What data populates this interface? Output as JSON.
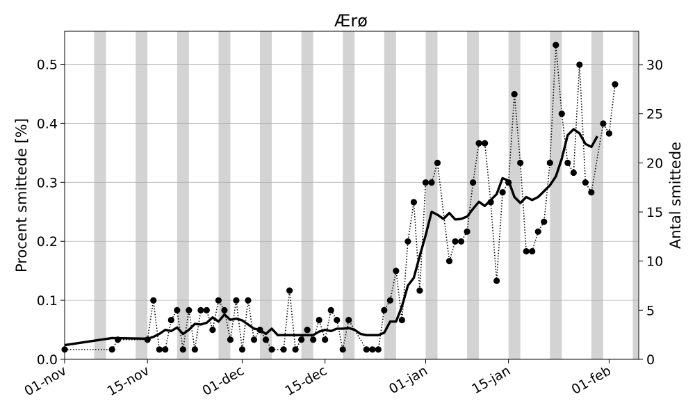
{
  "chart_data": {
    "type": "line",
    "title": "Ærø",
    "ylabel": "Procent smittede [%]",
    "ylabel_right": "Antal smittede",
    "x_unit": "day",
    "x_range": [
      "2020-11-01",
      "2021-02-06"
    ],
    "x_ticks": [
      {
        "date": "2020-11-01",
        "label": "01-nov"
      },
      {
        "date": "2020-11-15",
        "label": "15-nov"
      },
      {
        "date": "2020-12-01",
        "label": "01-dec"
      },
      {
        "date": "2020-12-15",
        "label": "15-dec"
      },
      {
        "date": "2021-01-01",
        "label": "01-jan"
      },
      {
        "date": "2021-01-15",
        "label": "15-jan"
      },
      {
        "date": "2021-02-01",
        "label": "01-feb"
      }
    ],
    "weekend_shading": [
      {
        "start": "2020-11-06",
        "end": "2020-11-08"
      },
      {
        "start": "2020-11-13",
        "end": "2020-11-15"
      },
      {
        "start": "2020-11-20",
        "end": "2020-11-22"
      },
      {
        "start": "2020-11-27",
        "end": "2020-11-29"
      },
      {
        "start": "2020-12-04",
        "end": "2020-12-06"
      },
      {
        "start": "2020-12-11",
        "end": "2020-12-13"
      },
      {
        "start": "2020-12-18",
        "end": "2020-12-20"
      },
      {
        "start": "2020-12-25",
        "end": "2020-12-27"
      },
      {
        "start": "2021-01-01",
        "end": "2021-01-03"
      },
      {
        "start": "2021-01-08",
        "end": "2021-01-10"
      },
      {
        "start": "2021-01-15",
        "end": "2021-01-17"
      },
      {
        "start": "2021-01-22",
        "end": "2021-01-24"
      },
      {
        "start": "2021-01-29",
        "end": "2021-01-31"
      },
      {
        "start": "2021-02-05",
        "end": "2021-02-07"
      }
    ],
    "ylim": [
      0,
      0.556
    ],
    "yticks": [
      0.0,
      0.1,
      0.2,
      0.3,
      0.4,
      0.5
    ],
    "ytick_labels": [
      "0.0",
      "0.1",
      "0.2",
      "0.3",
      "0.4",
      "0.5"
    ],
    "ylim_right": [
      0,
      33.4
    ],
    "yticks_right": [
      0,
      5,
      10,
      15,
      20,
      25,
      30
    ],
    "ytick_labels_right": [
      "0",
      "5",
      "10",
      "15",
      "20",
      "25",
      "30"
    ],
    "grid": "horizontal",
    "series": [
      {
        "style": "dotted black line with circle markers",
        "axis": "right",
        "points": [
          [
            "2020-11-01",
            1
          ],
          [
            "2020-11-09",
            1
          ],
          [
            "2020-11-10",
            2
          ],
          [
            "2020-11-15",
            2
          ],
          [
            "2020-11-16",
            6
          ],
          [
            "2020-11-17",
            1
          ],
          [
            "2020-11-18",
            1
          ],
          [
            "2020-11-19",
            4
          ],
          [
            "2020-11-20",
            5
          ],
          [
            "2020-11-21",
            1
          ],
          [
            "2020-11-22",
            5
          ],
          [
            "2020-11-23",
            1
          ],
          [
            "2020-11-24",
            5
          ],
          [
            "2020-11-25",
            5
          ],
          [
            "2020-11-26",
            3
          ],
          [
            "2020-11-27",
            6
          ],
          [
            "2020-11-28",
            5
          ],
          [
            "2020-11-29",
            2
          ],
          [
            "2020-11-30",
            6
          ],
          [
            "2020-12-01",
            1
          ],
          [
            "2020-12-02",
            6
          ],
          [
            "2020-12-03",
            2
          ],
          [
            "2020-12-04",
            3
          ],
          [
            "2020-12-05",
            2
          ],
          [
            "2020-12-06",
            1
          ],
          [
            "2020-12-08",
            1
          ],
          [
            "2020-12-09",
            7
          ],
          [
            "2020-12-10",
            1
          ],
          [
            "2020-12-11",
            2
          ],
          [
            "2020-12-12",
            3
          ],
          [
            "2020-12-13",
            2
          ],
          [
            "2020-12-14",
            4
          ],
          [
            "2020-12-15",
            2
          ],
          [
            "2020-12-16",
            5
          ],
          [
            "2020-12-17",
            4
          ],
          [
            "2020-12-18",
            1
          ],
          [
            "2020-12-19",
            4
          ],
          [
            "2020-12-22",
            1
          ],
          [
            "2020-12-23",
            1
          ],
          [
            "2020-12-24",
            1
          ],
          [
            "2020-12-25",
            5
          ],
          [
            "2020-12-26",
            6
          ],
          [
            "2020-12-27",
            9
          ],
          [
            "2020-12-28",
            4
          ],
          [
            "2020-12-29",
            12
          ],
          [
            "2020-12-30",
            16
          ],
          [
            "2020-12-31",
            7
          ],
          [
            "2021-01-01",
            18
          ],
          [
            "2021-01-02",
            18
          ],
          [
            "2021-01-03",
            20
          ],
          [
            "2021-01-05",
            10
          ],
          [
            "2021-01-06",
            12
          ],
          [
            "2021-01-07",
            12
          ],
          [
            "2021-01-08",
            13
          ],
          [
            "2021-01-09",
            18
          ],
          [
            "2021-01-10",
            22
          ],
          [
            "2021-01-11",
            22
          ],
          [
            "2021-01-12",
            16
          ],
          [
            "2021-01-13",
            8
          ],
          [
            "2021-01-14",
            17
          ],
          [
            "2021-01-15",
            18
          ],
          [
            "2021-01-16",
            27
          ],
          [
            "2021-01-17",
            20
          ],
          [
            "2021-01-18",
            11
          ],
          [
            "2021-01-19",
            11
          ],
          [
            "2021-01-20",
            13
          ],
          [
            "2021-01-21",
            14
          ],
          [
            "2021-01-22",
            20
          ],
          [
            "2021-01-23",
            32
          ],
          [
            "2021-01-24",
            25
          ],
          [
            "2021-01-25",
            20
          ],
          [
            "2021-01-26",
            19
          ],
          [
            "2021-01-27",
            30
          ],
          [
            "2021-01-28",
            18
          ],
          [
            "2021-01-29",
            17
          ],
          [
            "2021-01-31",
            24
          ],
          [
            "2021-02-01",
            23
          ],
          [
            "2021-02-02",
            28
          ]
        ]
      },
      {
        "style": "solid thick black line",
        "axis": "left",
        "points": [
          [
            "2020-11-01",
            0.024
          ],
          [
            "2020-11-09",
            0.036
          ],
          [
            "2020-11-15",
            0.035
          ],
          [
            "2020-11-16",
            0.038
          ],
          [
            "2020-11-17",
            0.043
          ],
          [
            "2020-11-18",
            0.05
          ],
          [
            "2020-11-19",
            0.048
          ],
          [
            "2020-11-20",
            0.054
          ],
          [
            "2020-11-21",
            0.043
          ],
          [
            "2020-11-22",
            0.05
          ],
          [
            "2020-11-23",
            0.06
          ],
          [
            "2020-11-24",
            0.059
          ],
          [
            "2020-11-25",
            0.062
          ],
          [
            "2020-11-26",
            0.071
          ],
          [
            "2020-11-27",
            0.064
          ],
          [
            "2020-11-28",
            0.076
          ],
          [
            "2020-11-29",
            0.067
          ],
          [
            "2020-11-30",
            0.069
          ],
          [
            "2020-12-01",
            0.066
          ],
          [
            "2020-12-02",
            0.059
          ],
          [
            "2020-12-03",
            0.052
          ],
          [
            "2020-12-04",
            0.05
          ],
          [
            "2020-12-05",
            0.043
          ],
          [
            "2020-12-06",
            0.052
          ],
          [
            "2020-12-07",
            0.041
          ],
          [
            "2020-12-13",
            0.041
          ],
          [
            "2020-12-14",
            0.047
          ],
          [
            "2020-12-15",
            0.05
          ],
          [
            "2020-12-16",
            0.048
          ],
          [
            "2020-12-17",
            0.052
          ],
          [
            "2020-12-18",
            0.052
          ],
          [
            "2020-12-19",
            0.053
          ],
          [
            "2020-12-20",
            0.05
          ],
          [
            "2020-12-21",
            0.043
          ],
          [
            "2020-12-22",
            0.041
          ],
          [
            "2020-12-23",
            0.041
          ],
          [
            "2020-12-24",
            0.041
          ],
          [
            "2020-12-25",
            0.045
          ],
          [
            "2020-12-26",
            0.064
          ],
          [
            "2020-12-27",
            0.064
          ],
          [
            "2020-12-28",
            0.09
          ],
          [
            "2020-12-29",
            0.125
          ],
          [
            "2020-12-30",
            0.138
          ],
          [
            "2020-12-31",
            0.175
          ],
          [
            "2021-01-01",
            0.21
          ],
          [
            "2021-01-02",
            0.25
          ],
          [
            "2021-01-03",
            0.245
          ],
          [
            "2021-01-04",
            0.238
          ],
          [
            "2021-01-05",
            0.248
          ],
          [
            "2021-01-06",
            0.237
          ],
          [
            "2021-01-07",
            0.238
          ],
          [
            "2021-01-08",
            0.242
          ],
          [
            "2021-01-09",
            0.255
          ],
          [
            "2021-01-10",
            0.267
          ],
          [
            "2021-01-11",
            0.26
          ],
          [
            "2021-01-12",
            0.27
          ],
          [
            "2021-01-13",
            0.28
          ],
          [
            "2021-01-14",
            0.307
          ],
          [
            "2021-01-15",
            0.303
          ],
          [
            "2021-01-16",
            0.275
          ],
          [
            "2021-01-17",
            0.265
          ],
          [
            "2021-01-18",
            0.275
          ],
          [
            "2021-01-19",
            0.27
          ],
          [
            "2021-01-20",
            0.275
          ],
          [
            "2021-01-21",
            0.285
          ],
          [
            "2021-01-22",
            0.295
          ],
          [
            "2021-01-23",
            0.31
          ],
          [
            "2021-01-24",
            0.34
          ],
          [
            "2021-01-25",
            0.38
          ],
          [
            "2021-01-26",
            0.39
          ],
          [
            "2021-01-27",
            0.383
          ],
          [
            "2021-01-28",
            0.365
          ],
          [
            "2021-01-29",
            0.36
          ],
          [
            "2021-01-30",
            0.378
          ]
        ]
      }
    ]
  }
}
